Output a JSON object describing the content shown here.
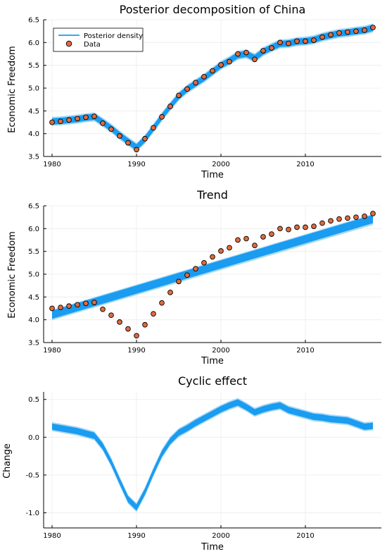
{
  "colors": {
    "band": "#1a9cf0",
    "band_light": "#8ccdf5",
    "marker_fill": "#e26a3c",
    "marker_edge": "#000000",
    "grid": "#ececec",
    "axis": "#000000"
  },
  "chart_data": [
    {
      "type": "line",
      "title": "Posterior decomposition of China",
      "xlabel": "Time",
      "ylabel": "Economic Freedom",
      "xlim": [
        1979,
        2019
      ],
      "ylim": [
        3.5,
        6.5
      ],
      "xticks": [
        1980,
        1990,
        2000,
        2010
      ],
      "xtick_labels": [
        "1980",
        "1990",
        "2000",
        "2010"
      ],
      "yticks": [
        3.5,
        4.0,
        4.5,
        5.0,
        5.5,
        6.0,
        6.5
      ],
      "ytick_labels": [
        "3.5",
        "4.0",
        "4.5",
        "5.0",
        "5.5",
        "6.0",
        "6.5"
      ],
      "grid": true,
      "legend": {
        "position": "top-left",
        "entries": [
          {
            "label": "Posterior density",
            "kind": "line"
          },
          {
            "label": "Data",
            "kind": "marker"
          }
        ]
      },
      "x": [
        1980,
        1981,
        1982,
        1983,
        1984,
        1985,
        1986,
        1987,
        1988,
        1989,
        1990,
        1991,
        1992,
        1993,
        1994,
        1995,
        1996,
        1997,
        1998,
        1999,
        2000,
        2001,
        2002,
        2003,
        2004,
        2005,
        2006,
        2007,
        2008,
        2009,
        2010,
        2011,
        2012,
        2013,
        2014,
        2015,
        2016,
        2017,
        2018
      ],
      "series": [
        {
          "name": "Posterior density",
          "kind": "band",
          "center": [
            4.27,
            4.28,
            4.3,
            4.32,
            4.35,
            4.37,
            4.25,
            4.12,
            3.97,
            3.83,
            3.7,
            3.88,
            4.12,
            4.37,
            4.6,
            4.82,
            4.98,
            5.1,
            5.22,
            5.36,
            5.5,
            5.6,
            5.72,
            5.75,
            5.66,
            5.8,
            5.89,
            5.97,
            5.98,
            6.02,
            6.03,
            6.06,
            6.12,
            6.16,
            6.2,
            6.22,
            6.25,
            6.27,
            6.32
          ],
          "halfwidth": 0.1
        },
        {
          "name": "Data",
          "kind": "scatter",
          "y": [
            4.25,
            4.27,
            4.3,
            4.33,
            4.36,
            4.38,
            4.23,
            4.1,
            3.95,
            3.8,
            3.65,
            3.89,
            4.13,
            4.37,
            4.6,
            4.84,
            4.98,
            5.12,
            5.25,
            5.38,
            5.51,
            5.58,
            5.75,
            5.78,
            5.63,
            5.82,
            5.88,
            6.0,
            5.98,
            6.03,
            6.03,
            6.05,
            6.12,
            6.17,
            6.21,
            6.23,
            6.25,
            6.27,
            6.33
          ]
        }
      ]
    },
    {
      "type": "line",
      "title": "Trend",
      "xlabel": "Time",
      "ylabel": "Economic Freedom",
      "xlim": [
        1979,
        2019
      ],
      "ylim": [
        3.5,
        6.5
      ],
      "xticks": [
        1980,
        1990,
        2000,
        2010
      ],
      "xtick_labels": [
        "1980",
        "1990",
        "2000",
        "2010"
      ],
      "yticks": [
        3.5,
        4.0,
        4.5,
        5.0,
        5.5,
        6.0,
        6.5
      ],
      "ytick_labels": [
        "3.5",
        "4.0",
        "4.5",
        "5.0",
        "5.5",
        "6.0",
        "6.5"
      ],
      "grid": true,
      "x": [
        1980,
        1981,
        1982,
        1983,
        1984,
        1985,
        1986,
        1987,
        1988,
        1989,
        1990,
        1991,
        1992,
        1993,
        1994,
        1995,
        1996,
        1997,
        1998,
        1999,
        2000,
        2001,
        2002,
        2003,
        2004,
        2005,
        2006,
        2007,
        2008,
        2009,
        2010,
        2011,
        2012,
        2013,
        2014,
        2015,
        2016,
        2017,
        2018
      ],
      "series": [
        {
          "kind": "trend_band",
          "start": {
            "x": 1980,
            "low": 4.02,
            "high": 4.22
          },
          "end": {
            "x": 2018,
            "low": 6.12,
            "high": 6.3
          }
        },
        {
          "kind": "scatter",
          "y": [
            4.25,
            4.27,
            4.3,
            4.33,
            4.36,
            4.38,
            4.23,
            4.1,
            3.95,
            3.8,
            3.65,
            3.89,
            4.13,
            4.37,
            4.6,
            4.84,
            4.98,
            5.12,
            5.25,
            5.38,
            5.51,
            5.58,
            5.75,
            5.78,
            5.63,
            5.82,
            5.88,
            6.0,
            5.98,
            6.03,
            6.03,
            6.05,
            6.12,
            6.17,
            6.21,
            6.23,
            6.25,
            6.27,
            6.33
          ]
        }
      ]
    },
    {
      "type": "line",
      "title": "Cyclic effect",
      "xlabel": "Time",
      "ylabel": "Change",
      "xlim": [
        1979,
        2019
      ],
      "ylim": [
        -1.2,
        0.6
      ],
      "xticks": [
        1980,
        1990,
        2000,
        2010
      ],
      "xtick_labels": [
        "1980",
        "1990",
        "2000",
        "2010"
      ],
      "yticks": [
        -1.0,
        -0.5,
        0.0,
        0.5
      ],
      "ytick_labels": [
        "-1.0",
        "-0.5",
        "0.0",
        "0.5"
      ],
      "grid": true,
      "x": [
        1980,
        1981,
        1982,
        1983,
        1984,
        1985,
        1986,
        1987,
        1988,
        1989,
        1990,
        1991,
        1992,
        1993,
        1994,
        1995,
        1996,
        1997,
        1998,
        1999,
        2000,
        2001,
        2002,
        2003,
        2004,
        2005,
        2006,
        2007,
        2008,
        2009,
        2010,
        2011,
        2012,
        2013,
        2014,
        2015,
        2016,
        2017,
        2018
      ],
      "series": [
        {
          "kind": "band",
          "center": [
            0.14,
            0.12,
            0.1,
            0.08,
            0.05,
            0.02,
            -0.12,
            -0.33,
            -0.58,
            -0.82,
            -0.93,
            -0.72,
            -0.46,
            -0.22,
            -0.05,
            0.06,
            0.12,
            0.19,
            0.25,
            0.31,
            0.37,
            0.42,
            0.46,
            0.4,
            0.33,
            0.37,
            0.4,
            0.42,
            0.36,
            0.33,
            0.3,
            0.27,
            0.26,
            0.24,
            0.23,
            0.22,
            0.18,
            0.14,
            0.15
          ],
          "halfwidth": 0.06
        }
      ]
    }
  ]
}
